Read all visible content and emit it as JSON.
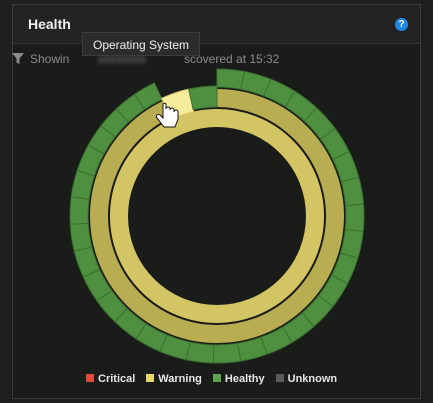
{
  "panel": {
    "title": "Health",
    "help_icon": "question-circle-icon"
  },
  "filter": {
    "icon": "filter-icon",
    "prefix": "Showin",
    "blurred_value": "",
    "suffix": "scovered at 15:32"
  },
  "tooltip": {
    "text": "Operating System"
  },
  "colors": {
    "critical": "#e04b3f",
    "warning": "#e6d66e",
    "healthy": "#5aa54b",
    "unknown": "#5b5b5b",
    "warning_fill_inner": "#d4c564",
    "warning_fill_middle": "#b9ad52",
    "healthy_fill": "#4e8f40",
    "highlight": "#f4ec9a"
  },
  "legend": [
    {
      "key": "critical",
      "label": "Critical"
    },
    {
      "key": "warning",
      "label": "Warning"
    },
    {
      "key": "healthy",
      "label": "Healthy"
    },
    {
      "key": "unknown",
      "label": "Unknown"
    }
  ],
  "chart_data": {
    "type": "sunburst",
    "rings": [
      {
        "level": 1,
        "segments": 1,
        "status": "warning"
      },
      {
        "level": 2,
        "segments": 1,
        "status": "warning"
      },
      {
        "level": 3,
        "segments": 28,
        "status": "healthy",
        "hovered_segment": "Operating System"
      }
    ]
  }
}
